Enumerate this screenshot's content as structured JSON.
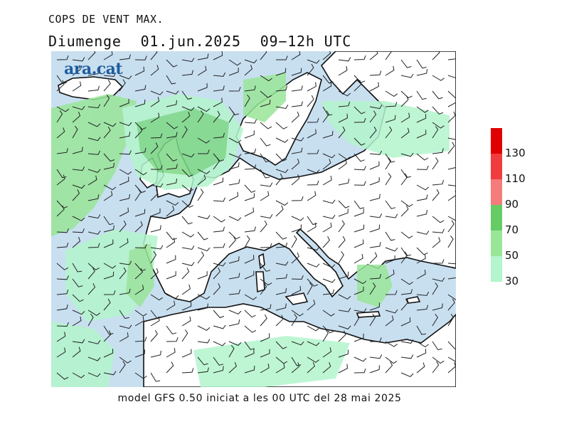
{
  "header": {
    "title": "COPS DE VENT MAX.",
    "day": "Diumenge",
    "date": "01.jun.2025",
    "time_range": "09−12h UTC"
  },
  "logo_text": "ara.cat",
  "footer": {
    "model_info": "model GFS 0.50 iniciat a les 00 UTC del 28 mai 2025"
  },
  "legend": {
    "levels": [
      {
        "label": "130",
        "color": "#e00000"
      },
      {
        "label": "110",
        "color": "#f03c3c"
      },
      {
        "label": "90",
        "color": "#f47c7c"
      },
      {
        "label": "70",
        "color": "#66cc66"
      },
      {
        "label": "50",
        "color": "#99e699"
      },
      {
        "label": "30",
        "color": "#b3f5cc"
      }
    ]
  },
  "colors": {
    "sea": "#c8dff0",
    "land": "#ffffff",
    "wind_30_50": "#b3f5cc",
    "wind_50_70": "#99e699",
    "wind_70_90": "#66cc66"
  }
}
